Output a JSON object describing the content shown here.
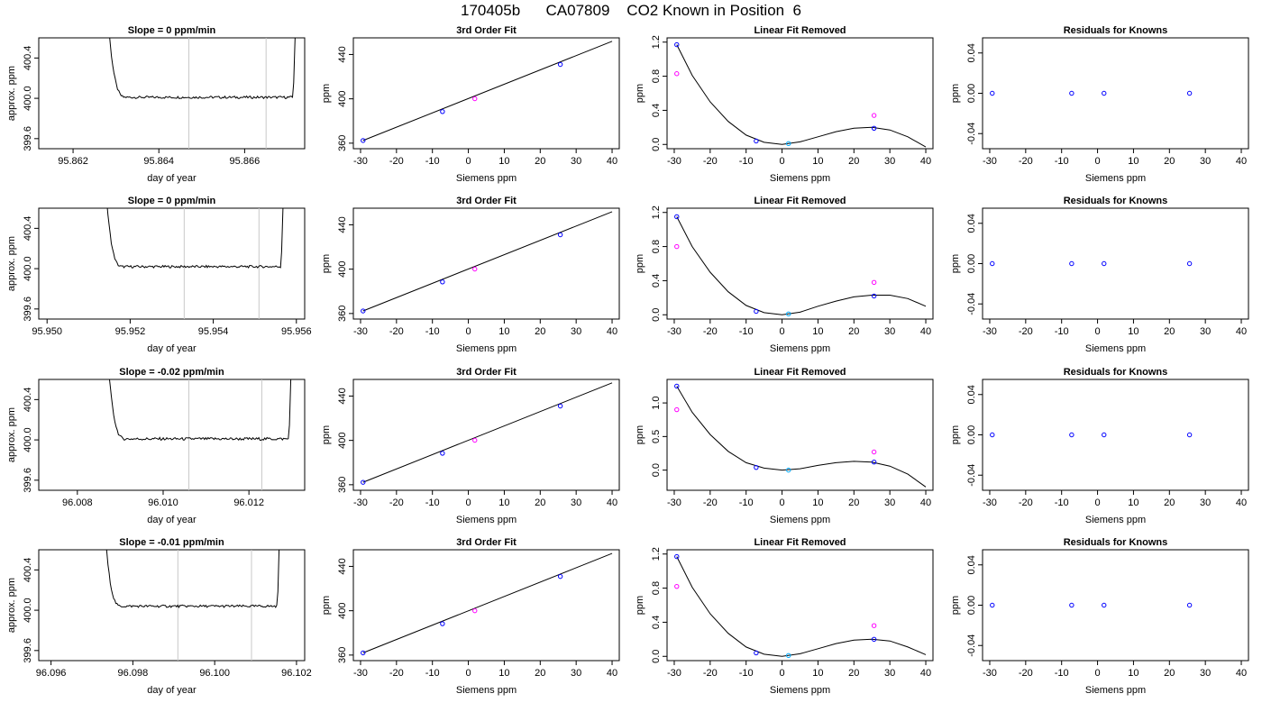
{
  "page": {
    "title": "170405b      CA07809    CO2 Known in Position  6"
  },
  "colors": {
    "line": "#000000",
    "point_known": "#0000ff",
    "point_ref": "#ff00ff",
    "point_cyan": "#00aaff",
    "vline": "#c8c8c8"
  },
  "chart_data": [
    {
      "type": "line",
      "row": 1,
      "col": 1,
      "title": "Slope =  0  ppm/min",
      "xlabel": "day of year",
      "ylabel": "approx. ppm",
      "xlim": [
        95.8612,
        95.8674
      ],
      "ylim": [
        399.5,
        400.6
      ],
      "xticks": [
        95.862,
        95.864,
        95.866
      ],
      "xtick_labels": [
        "95.862",
        "95.864",
        "95.866"
      ],
      "yticks": [
        399.6,
        400.0,
        400.4
      ],
      "ytick_labels": [
        "399.6",
        "400.0",
        "400.4"
      ],
      "trace_start": 95.8627,
      "trace_end": 95.8672,
      "plateau": 400.01,
      "noise": 0.012,
      "vlines": [
        95.8647,
        95.8665
      ]
    },
    {
      "type": "scatter",
      "row": 1,
      "col": 2,
      "title": "3rd Order Fit",
      "xlabel": "Siemens ppm",
      "ylabel": "ppm",
      "xlim": [
        -32,
        42
      ],
      "ylim": [
        355,
        455
      ],
      "xticks": [
        -30,
        -20,
        -10,
        0,
        10,
        20,
        30,
        40
      ],
      "yticks": [
        360,
        400,
        440
      ],
      "line_points": [
        [
          -29.3,
          362.4
        ],
        [
          40,
          451.9
        ]
      ],
      "points": [
        {
          "x": -29.3,
          "y": 362.4,
          "color": "#0000ff"
        },
        {
          "x": -7.2,
          "y": 388.5,
          "color": "#0000ff"
        },
        {
          "x": 1.8,
          "y": 400.1,
          "color": "#ff00ff"
        },
        {
          "x": 25.6,
          "y": 431.0,
          "color": "#0000ff"
        }
      ]
    },
    {
      "type": "scatter",
      "row": 1,
      "col": 3,
      "title": "Linear Fit Removed",
      "xlabel": "Siemens ppm",
      "ylabel": "ppm",
      "xlim": [
        -32,
        42
      ],
      "ylim": [
        -0.05,
        1.25
      ],
      "xticks": [
        -30,
        -20,
        -10,
        0,
        10,
        20,
        30,
        40
      ],
      "yticks": [
        0.0,
        0.4,
        0.8,
        1.2
      ],
      "ytick_labels": [
        "0.0",
        "0.4",
        "0.8",
        "1.2"
      ],
      "curve_points": [
        [
          -29.3,
          1.17
        ],
        [
          -25,
          0.81
        ],
        [
          -20,
          0.5
        ],
        [
          -15,
          0.27
        ],
        [
          -10,
          0.11
        ],
        [
          -5,
          0.025
        ],
        [
          0,
          0.0
        ],
        [
          5,
          0.03
        ],
        [
          10,
          0.09
        ],
        [
          15,
          0.15
        ],
        [
          20,
          0.19
        ],
        [
          25,
          0.2
        ],
        [
          30,
          0.17
        ],
        [
          35,
          0.09
        ],
        [
          40,
          -0.03
        ]
      ],
      "points": [
        {
          "x": -29.3,
          "y": 1.17,
          "color": "#0000ff"
        },
        {
          "x": -29.3,
          "y": 0.83,
          "color": "#ff00ff"
        },
        {
          "x": -7.2,
          "y": 0.04,
          "color": "#0000ff"
        },
        {
          "x": 1.8,
          "y": 0.01,
          "color": "#00aaff"
        },
        {
          "x": 25.6,
          "y": 0.19,
          "color": "#0000ff"
        },
        {
          "x": 25.6,
          "y": 0.34,
          "color": "#ff00ff"
        }
      ]
    },
    {
      "type": "scatter",
      "row": 1,
      "col": 4,
      "title": "Residuals for Knowns",
      "xlabel": "Siemens ppm",
      "ylabel": "ppm",
      "xlim": [
        -32,
        42
      ],
      "ylim": [
        -0.055,
        0.055
      ],
      "xticks": [
        -30,
        -20,
        -10,
        0,
        10,
        20,
        30,
        40
      ],
      "yticks": [
        -0.04,
        0.0,
        0.04
      ],
      "ytick_labels": [
        "-0.04",
        "0.00",
        "0.04"
      ],
      "points": [
        {
          "x": -29.3,
          "y": 0.0,
          "color": "#0000ff"
        },
        {
          "x": -7.2,
          "y": 0.0,
          "color": "#0000ff"
        },
        {
          "x": 1.8,
          "y": 0.0,
          "color": "#0000ff"
        },
        {
          "x": 25.6,
          "y": 0.0,
          "color": "#0000ff"
        }
      ]
    },
    {
      "type": "line",
      "row": 2,
      "col": 1,
      "title": "Slope =  0  ppm/min",
      "xlabel": "day of year",
      "ylabel": "approx. ppm",
      "xlim": [
        95.9498,
        95.9562
      ],
      "ylim": [
        399.5,
        400.6
      ],
      "xticks": [
        95.95,
        95.952,
        95.954,
        95.956
      ],
      "xtick_labels": [
        "95.950",
        "95.952",
        "95.954",
        "95.956"
      ],
      "yticks": [
        399.6,
        400.0,
        400.4
      ],
      "ytick_labels": [
        "399.6",
        "400.0",
        "400.4"
      ],
      "trace_start": 95.9513,
      "trace_end": 95.9557,
      "plateau": 400.02,
      "noise": 0.012,
      "vlines": [
        95.9533,
        95.9551
      ]
    },
    {
      "type": "scatter",
      "row": 2,
      "col": 2,
      "title": "3rd Order Fit",
      "xlabel": "Siemens ppm",
      "ylabel": "ppm",
      "xlim": [
        -32,
        42
      ],
      "ylim": [
        355,
        455
      ],
      "xticks": [
        -30,
        -20,
        -10,
        0,
        10,
        20,
        30,
        40
      ],
      "yticks": [
        360,
        400,
        440
      ],
      "line_points": [
        [
          -29.3,
          362.3
        ],
        [
          40,
          451.8
        ]
      ],
      "points": [
        {
          "x": -29.3,
          "y": 362.3,
          "color": "#0000ff"
        },
        {
          "x": -7.2,
          "y": 388.5,
          "color": "#0000ff"
        },
        {
          "x": 1.8,
          "y": 400.1,
          "color": "#ff00ff"
        },
        {
          "x": 25.6,
          "y": 431.0,
          "color": "#0000ff"
        }
      ]
    },
    {
      "type": "scatter",
      "row": 2,
      "col": 3,
      "title": "Linear Fit Removed",
      "xlabel": "Siemens ppm",
      "ylabel": "ppm",
      "xlim": [
        -32,
        42
      ],
      "ylim": [
        -0.05,
        1.25
      ],
      "xticks": [
        -30,
        -20,
        -10,
        0,
        10,
        20,
        30,
        40
      ],
      "yticks": [
        0.0,
        0.4,
        0.8,
        1.2
      ],
      "ytick_labels": [
        "0.0",
        "0.4",
        "0.8",
        "1.2"
      ],
      "curve_points": [
        [
          -29.3,
          1.15
        ],
        [
          -25,
          0.8
        ],
        [
          -20,
          0.5
        ],
        [
          -15,
          0.27
        ],
        [
          -10,
          0.11
        ],
        [
          -5,
          0.025
        ],
        [
          0,
          0.0
        ],
        [
          5,
          0.03
        ],
        [
          10,
          0.1
        ],
        [
          15,
          0.16
        ],
        [
          20,
          0.21
        ],
        [
          25,
          0.23
        ],
        [
          30,
          0.23
        ],
        [
          35,
          0.19
        ],
        [
          40,
          0.1
        ]
      ],
      "points": [
        {
          "x": -29.3,
          "y": 1.15,
          "color": "#0000ff"
        },
        {
          "x": -29.3,
          "y": 0.8,
          "color": "#ff00ff"
        },
        {
          "x": -7.2,
          "y": 0.04,
          "color": "#0000ff"
        },
        {
          "x": 1.8,
          "y": 0.01,
          "color": "#00aaff"
        },
        {
          "x": 25.6,
          "y": 0.22,
          "color": "#0000ff"
        },
        {
          "x": 25.6,
          "y": 0.38,
          "color": "#ff00ff"
        }
      ]
    },
    {
      "type": "scatter",
      "row": 2,
      "col": 4,
      "title": "Residuals for Knowns",
      "xlabel": "Siemens ppm",
      "ylabel": "ppm",
      "xlim": [
        -32,
        42
      ],
      "ylim": [
        -0.055,
        0.055
      ],
      "xticks": [
        -30,
        -20,
        -10,
        0,
        10,
        20,
        30,
        40
      ],
      "yticks": [
        -0.04,
        0.0,
        0.04
      ],
      "ytick_labels": [
        "-0.04",
        "0.00",
        "0.04"
      ],
      "points": [
        {
          "x": -29.3,
          "y": 0.0,
          "color": "#0000ff"
        },
        {
          "x": -7.2,
          "y": 0.0,
          "color": "#0000ff"
        },
        {
          "x": 1.8,
          "y": 0.0,
          "color": "#0000ff"
        },
        {
          "x": 25.6,
          "y": 0.0,
          "color": "#0000ff"
        }
      ]
    },
    {
      "type": "line",
      "row": 3,
      "col": 1,
      "title": "Slope =  -0.02  ppm/min",
      "xlabel": "day of year",
      "ylabel": "approx. ppm",
      "xlim": [
        96.0071,
        96.0133
      ],
      "ylim": [
        399.5,
        400.6
      ],
      "xticks": [
        96.008,
        96.01,
        96.012
      ],
      "xtick_labels": [
        "96.008",
        "96.010",
        "96.012"
      ],
      "yticks": [
        399.6,
        400.0,
        400.4
      ],
      "ytick_labels": [
        "399.6",
        "400.0",
        "400.4"
      ],
      "trace_start": 96.0086,
      "trace_end": 96.013,
      "plateau": 400.01,
      "noise": 0.014,
      "vlines": [
        96.0106,
        96.0123
      ]
    },
    {
      "type": "scatter",
      "row": 3,
      "col": 2,
      "title": "3rd Order Fit",
      "xlabel": "Siemens ppm",
      "ylabel": "ppm",
      "xlim": [
        -32,
        42
      ],
      "ylim": [
        355,
        455
      ],
      "xticks": [
        -30,
        -20,
        -10,
        0,
        10,
        20,
        30,
        40
      ],
      "yticks": [
        360,
        400,
        440
      ],
      "line_points": [
        [
          -29.3,
          362.2
        ],
        [
          40,
          451.9
        ]
      ],
      "points": [
        {
          "x": -29.3,
          "y": 362.2,
          "color": "#0000ff"
        },
        {
          "x": -7.2,
          "y": 388.4,
          "color": "#0000ff"
        },
        {
          "x": 1.8,
          "y": 400.1,
          "color": "#ff00ff"
        },
        {
          "x": 25.6,
          "y": 431.0,
          "color": "#0000ff"
        }
      ]
    },
    {
      "type": "scatter",
      "row": 3,
      "col": 3,
      "title": "Linear Fit Removed",
      "xlabel": "Siemens ppm",
      "ylabel": "ppm",
      "xlim": [
        -32,
        42
      ],
      "ylim": [
        -0.3,
        1.35
      ],
      "xticks": [
        -30,
        -20,
        -10,
        0,
        10,
        20,
        30,
        40
      ],
      "yticks": [
        0.0,
        0.5,
        1.0
      ],
      "ytick_labels": [
        "0.0",
        "0.5",
        "1.0"
      ],
      "curve_points": [
        [
          -29.3,
          1.25
        ],
        [
          -25,
          0.86
        ],
        [
          -20,
          0.53
        ],
        [
          -15,
          0.28
        ],
        [
          -10,
          0.11
        ],
        [
          -5,
          0.03
        ],
        [
          0,
          0.0
        ],
        [
          5,
          0.02
        ],
        [
          10,
          0.07
        ],
        [
          15,
          0.11
        ],
        [
          20,
          0.13
        ],
        [
          25,
          0.12
        ],
        [
          30,
          0.06
        ],
        [
          35,
          -0.06
        ],
        [
          40,
          -0.25
        ]
      ],
      "points": [
        {
          "x": -29.3,
          "y": 1.25,
          "color": "#0000ff"
        },
        {
          "x": -29.3,
          "y": 0.9,
          "color": "#ff00ff"
        },
        {
          "x": -7.2,
          "y": 0.04,
          "color": "#0000ff"
        },
        {
          "x": 1.8,
          "y": 0.0,
          "color": "#00aaff"
        },
        {
          "x": 25.6,
          "y": 0.12,
          "color": "#0000ff"
        },
        {
          "x": 25.6,
          "y": 0.27,
          "color": "#ff00ff"
        }
      ]
    },
    {
      "type": "scatter",
      "row": 3,
      "col": 4,
      "title": "Residuals for Knowns",
      "xlabel": "Siemens ppm",
      "ylabel": "ppm",
      "xlim": [
        -32,
        42
      ],
      "ylim": [
        -0.055,
        0.055
      ],
      "xticks": [
        -30,
        -20,
        -10,
        0,
        10,
        20,
        30,
        40
      ],
      "yticks": [
        -0.04,
        0.0,
        0.04
      ],
      "ytick_labels": [
        "-0.04",
        "0.00",
        "0.04"
      ],
      "points": [
        {
          "x": -29.3,
          "y": 0.0,
          "color": "#0000ff"
        },
        {
          "x": -7.2,
          "y": 0.0,
          "color": "#0000ff"
        },
        {
          "x": 1.8,
          "y": 0.0,
          "color": "#0000ff"
        },
        {
          "x": 25.6,
          "y": 0.0,
          "color": "#0000ff"
        }
      ]
    },
    {
      "type": "line",
      "row": 4,
      "col": 1,
      "title": "Slope =  -0.01  ppm/min",
      "xlabel": "day of year",
      "ylabel": "approx. ppm",
      "xlim": [
        96.0957,
        96.1022
      ],
      "ylim": [
        399.5,
        400.6
      ],
      "xticks": [
        96.096,
        96.098,
        96.1,
        96.102
      ],
      "xtick_labels": [
        "96.096",
        "96.098",
        "96.100",
        "96.102"
      ],
      "yticks": [
        399.6,
        400.0,
        400.4
      ],
      "ytick_labels": [
        "399.6",
        "400.0",
        "400.4"
      ],
      "trace_start": 96.0972,
      "trace_end": 96.1016,
      "plateau": 400.04,
      "noise": 0.012,
      "vlines": [
        96.0991,
        96.1009
      ]
    },
    {
      "type": "scatter",
      "row": 4,
      "col": 2,
      "title": "3rd Order Fit",
      "xlabel": "Siemens ppm",
      "ylabel": "ppm",
      "xlim": [
        -32,
        42
      ],
      "ylim": [
        355,
        455
      ],
      "xticks": [
        -30,
        -20,
        -10,
        0,
        10,
        20,
        30,
        40
      ],
      "yticks": [
        360,
        400,
        440
      ],
      "line_points": [
        [
          -29.3,
          362.0
        ],
        [
          40,
          451.7
        ]
      ],
      "points": [
        {
          "x": -29.3,
          "y": 362.0,
          "color": "#0000ff"
        },
        {
          "x": -7.2,
          "y": 388.3,
          "color": "#0000ff"
        },
        {
          "x": 1.8,
          "y": 400.0,
          "color": "#ff00ff"
        },
        {
          "x": 25.6,
          "y": 430.9,
          "color": "#0000ff"
        }
      ]
    },
    {
      "type": "scatter",
      "row": 4,
      "col": 3,
      "title": "Linear Fit Removed",
      "xlabel": "Siemens ppm",
      "ylabel": "ppm",
      "xlim": [
        -32,
        42
      ],
      "ylim": [
        -0.05,
        1.25
      ],
      "xticks": [
        -30,
        -20,
        -10,
        0,
        10,
        20,
        30,
        40
      ],
      "yticks": [
        0.0,
        0.4,
        0.8,
        1.2
      ],
      "ytick_labels": [
        "0.0",
        "0.4",
        "0.8",
        "1.2"
      ],
      "curve_points": [
        [
          -29.3,
          1.17
        ],
        [
          -25,
          0.81
        ],
        [
          -20,
          0.5
        ],
        [
          -15,
          0.27
        ],
        [
          -10,
          0.11
        ],
        [
          -5,
          0.025
        ],
        [
          0,
          0.0
        ],
        [
          5,
          0.03
        ],
        [
          10,
          0.09
        ],
        [
          15,
          0.15
        ],
        [
          20,
          0.19
        ],
        [
          25,
          0.2
        ],
        [
          30,
          0.18
        ],
        [
          35,
          0.11
        ],
        [
          40,
          0.02
        ]
      ],
      "points": [
        {
          "x": -29.3,
          "y": 1.17,
          "color": "#0000ff"
        },
        {
          "x": -29.3,
          "y": 0.82,
          "color": "#ff00ff"
        },
        {
          "x": -7.2,
          "y": 0.04,
          "color": "#0000ff"
        },
        {
          "x": 1.8,
          "y": 0.01,
          "color": "#00aaff"
        },
        {
          "x": 25.6,
          "y": 0.2,
          "color": "#0000ff"
        },
        {
          "x": 25.6,
          "y": 0.36,
          "color": "#ff00ff"
        }
      ]
    },
    {
      "type": "scatter",
      "row": 4,
      "col": 4,
      "title": "Residuals for Knowns",
      "xlabel": "Siemens ppm",
      "ylabel": "ppm",
      "xlim": [
        -32,
        42
      ],
      "ylim": [
        -0.055,
        0.055
      ],
      "xticks": [
        -30,
        -20,
        -10,
        0,
        10,
        20,
        30,
        40
      ],
      "yticks": [
        -0.04,
        0.0,
        0.04
      ],
      "ytick_labels": [
        "-0.04",
        "0.00",
        "0.04"
      ],
      "points": [
        {
          "x": -29.3,
          "y": 0.0,
          "color": "#0000ff"
        },
        {
          "x": -7.2,
          "y": 0.0,
          "color": "#0000ff"
        },
        {
          "x": 1.8,
          "y": 0.0,
          "color": "#0000ff"
        },
        {
          "x": 25.6,
          "y": 0.0,
          "color": "#0000ff"
        }
      ]
    }
  ]
}
